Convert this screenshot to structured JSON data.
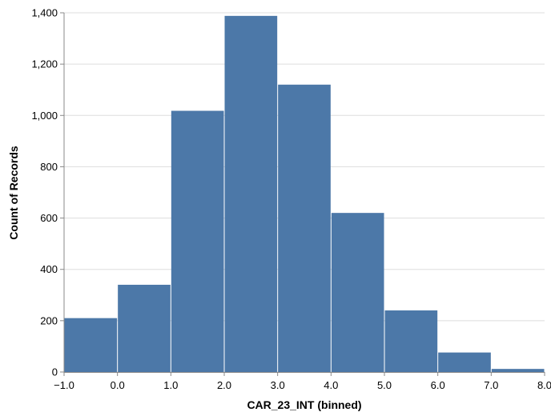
{
  "chart_data": {
    "type": "bar",
    "title": "",
    "xlabel": "CAR_23_INT (binned)",
    "ylabel": "Count of Records",
    "bins": [
      {
        "start": -1.0,
        "end": 0.0,
        "count": 210
      },
      {
        "start": 0.0,
        "end": 1.0,
        "count": 340
      },
      {
        "start": 1.0,
        "end": 2.0,
        "count": 1018
      },
      {
        "start": 2.0,
        "end": 3.0,
        "count": 1388
      },
      {
        "start": 3.0,
        "end": 4.0,
        "count": 1120
      },
      {
        "start": 4.0,
        "end": 5.0,
        "count": 620
      },
      {
        "start": 5.0,
        "end": 6.0,
        "count": 240
      },
      {
        "start": 6.0,
        "end": 7.0,
        "count": 76
      },
      {
        "start": 7.0,
        "end": 8.0,
        "count": 12
      }
    ],
    "xlim": [
      -1.0,
      8.0
    ],
    "ylim": [
      0,
      1400
    ],
    "x_ticks": [
      "−1.0",
      "0.0",
      "1.0",
      "2.0",
      "3.0",
      "4.0",
      "5.0",
      "6.0",
      "7.0",
      "8.0"
    ],
    "y_ticks": [
      "0",
      "200",
      "400",
      "600",
      "800",
      "1,000",
      "1,200",
      "1,400"
    ],
    "grid": true,
    "bar_color": "#4c78a8",
    "grid_color": "#dddddd",
    "axis_color": "#888888"
  }
}
